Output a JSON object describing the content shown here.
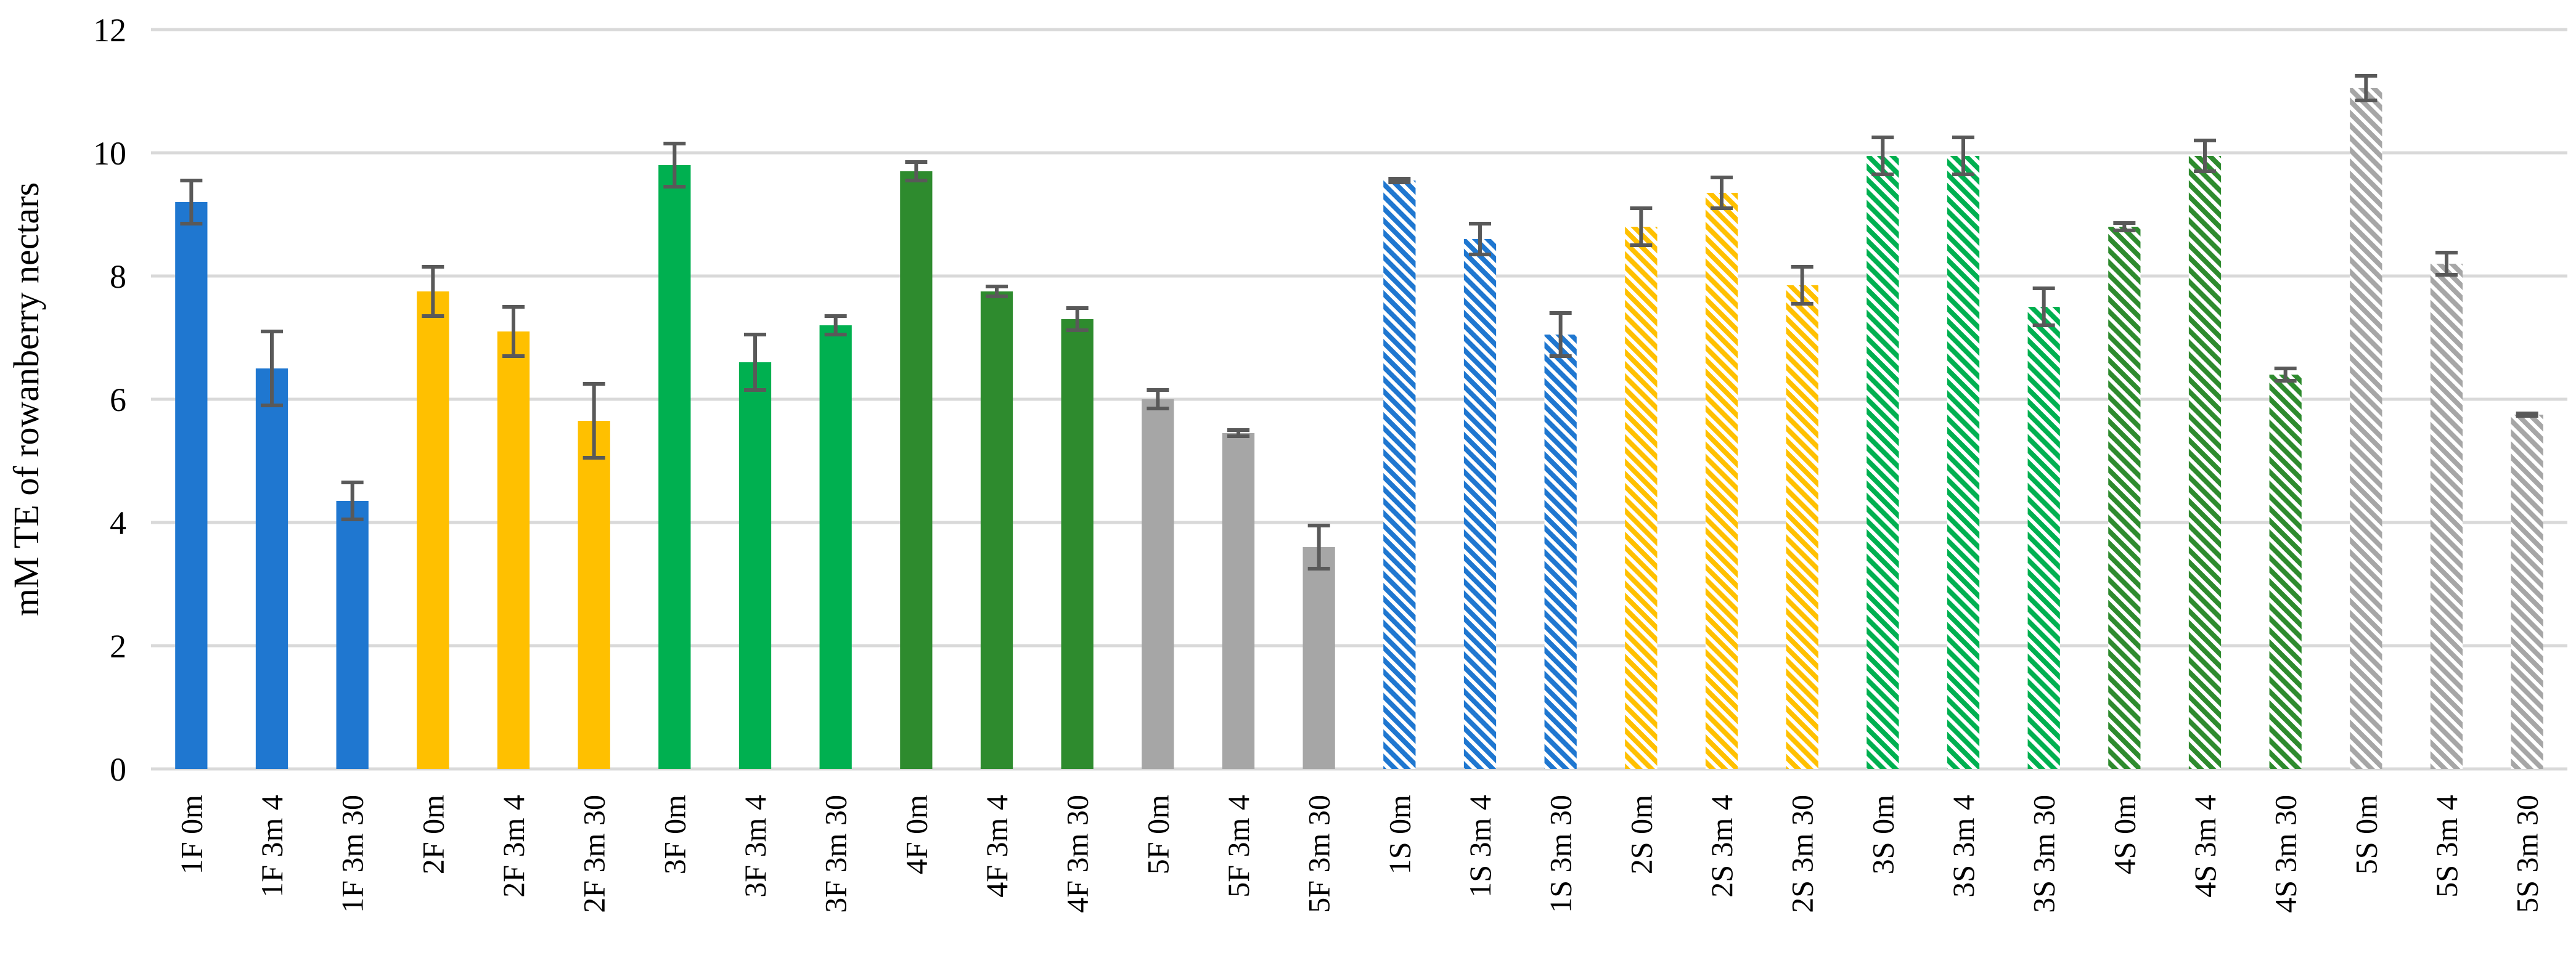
{
  "chart_data": {
    "type": "bar",
    "ylabel": "mM TE of rowanberry nectars",
    "ylim": [
      0,
      12
    ],
    "yticks": [
      0,
      2,
      4,
      6,
      8,
      10,
      12
    ],
    "grid": true,
    "legend": "none",
    "categories": [
      "1F 0m",
      "1F 3m 4",
      "1F 3m 30",
      "2F 0m",
      "2F 3m 4",
      "2F 3m 30",
      "3F 0m",
      "3F 3m 4",
      "3F 3m 30",
      "4F 0m",
      "4F 3m 4",
      "4F 3m 30",
      "5F 0m",
      "5F 3m 4",
      "5F 3m 30",
      "1S 0m",
      "1S 3m 4",
      "1S 3m 30",
      "2S 0m",
      "2S 3m 4",
      "2S 3m 30",
      "3S 0m",
      "3S 3m 4",
      "3S 3m 30",
      "4S 0m",
      "4S 3m 4",
      "4S 3m 30",
      "5S 0m",
      "5S 3m 4",
      "5S 3m 30"
    ],
    "values": [
      9.2,
      6.5,
      4.35,
      7.75,
      7.1,
      5.65,
      9.8,
      6.6,
      7.2,
      9.7,
      7.75,
      7.3,
      6.0,
      5.45,
      3.6,
      9.55,
      8.6,
      7.05,
      8.8,
      9.35,
      7.85,
      9.95,
      9.95,
      7.5,
      8.8,
      9.95,
      6.4,
      11.05,
      8.2,
      5.75
    ],
    "errors": [
      0.35,
      0.6,
      0.3,
      0.4,
      0.4,
      0.6,
      0.35,
      0.45,
      0.15,
      0.15,
      0.08,
      0.18,
      0.15,
      0.05,
      0.35,
      0.03,
      0.25,
      0.35,
      0.3,
      0.25,
      0.3,
      0.3,
      0.3,
      0.3,
      0.06,
      0.25,
      0.1,
      0.2,
      0.18,
      0.02
    ],
    "colors": [
      "#1f77d0",
      "#1f77d0",
      "#1f77d0",
      "#ffc000",
      "#ffc000",
      "#ffc000",
      "#00b050",
      "#00b050",
      "#00b050",
      "#2e8b2e",
      "#2e8b2e",
      "#2e8b2e",
      "#a6a6a6",
      "#a6a6a6",
      "#a6a6a6",
      "#1f77d0",
      "#1f77d0",
      "#1f77d0",
      "#ffc000",
      "#ffc000",
      "#ffc000",
      "#00b050",
      "#00b050",
      "#00b050",
      "#2e8b2e",
      "#2e8b2e",
      "#2e8b2e",
      "#a6a6a6",
      "#a6a6a6",
      "#a6a6a6"
    ],
    "hatched": [
      false,
      false,
      false,
      false,
      false,
      false,
      false,
      false,
      false,
      false,
      false,
      false,
      false,
      false,
      false,
      true,
      true,
      true,
      true,
      true,
      true,
      true,
      true,
      true,
      true,
      true,
      true,
      true,
      true,
      true
    ]
  }
}
